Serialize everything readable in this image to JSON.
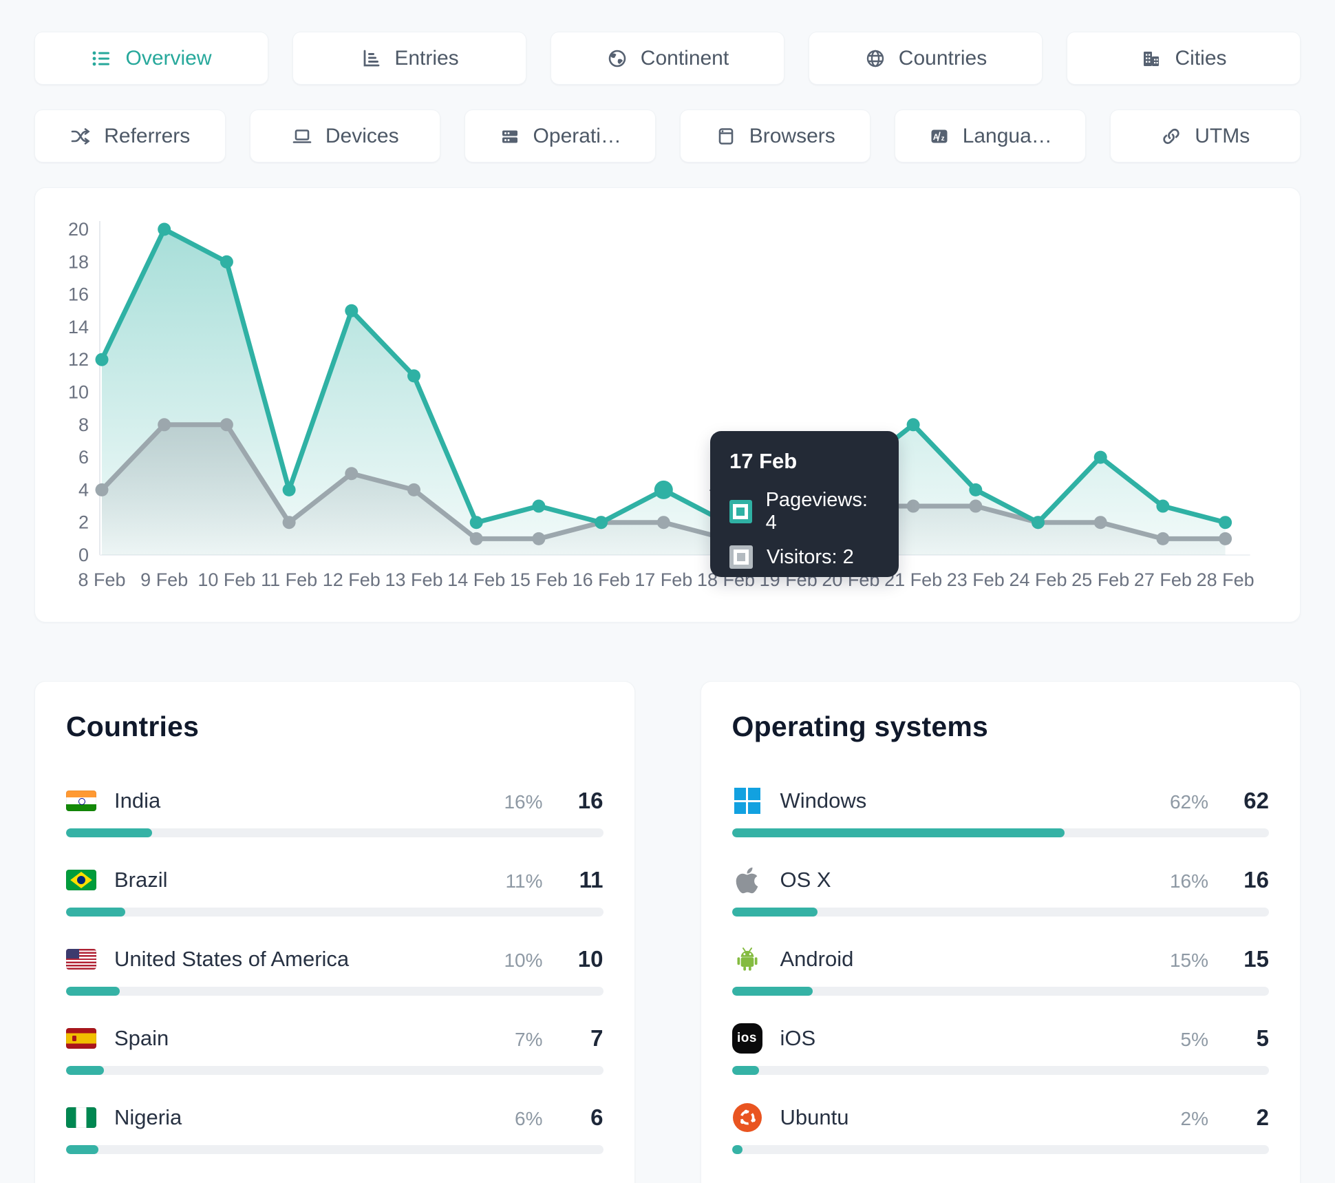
{
  "colors": {
    "accent": "#2fb1a4",
    "secondary_line": "#9ca7ad",
    "tooltip_bg": "#232a36",
    "windows_blue": "#12a1e0",
    "apple_gray": "#8e9399",
    "android_green": "#84bb40",
    "ubuntu_orange": "#E95420"
  },
  "tabs_row1": [
    {
      "label": "Overview",
      "icon": "list-icon",
      "active": true
    },
    {
      "label": "Entries",
      "icon": "bar-chart-icon",
      "active": false
    },
    {
      "label": "Continent",
      "icon": "earth-icon",
      "active": false
    },
    {
      "label": "Countries",
      "icon": "globe-icon",
      "active": false
    },
    {
      "label": "Cities",
      "icon": "buildings-icon",
      "active": false
    }
  ],
  "tabs_row2": [
    {
      "label": "Referrers",
      "icon": "shuffle-icon",
      "active": false
    },
    {
      "label": "Devices",
      "icon": "laptop-icon",
      "active": false
    },
    {
      "label": "Operati…",
      "icon": "server-icon",
      "active": false
    },
    {
      "label": "Browsers",
      "icon": "browser-icon",
      "active": false
    },
    {
      "label": "Langua…",
      "icon": "language-icon",
      "active": false
    },
    {
      "label": "UTMs",
      "icon": "link-icon",
      "active": false
    }
  ],
  "chart_data": {
    "type": "area",
    "x": [
      "8 Feb",
      "9 Feb",
      "10 Feb",
      "11 Feb",
      "12 Feb",
      "13 Feb",
      "14 Feb",
      "15 Feb",
      "16 Feb",
      "17 Feb",
      "18 Feb",
      "19 Feb",
      "20 Feb",
      "21 Feb",
      "23 Feb",
      "24 Feb",
      "25 Feb",
      "27 Feb",
      "28 Feb"
    ],
    "series": [
      {
        "name": "Pageviews",
        "color": "#2fb1a4",
        "values": [
          12,
          20,
          18,
          4,
          15,
          11,
          2,
          3,
          2,
          4,
          2,
          3,
          5,
          8,
          4,
          2,
          6,
          3,
          2
        ]
      },
      {
        "name": "Visitors",
        "color": "#9ca7ad",
        "values": [
          4,
          8,
          8,
          2,
          5,
          4,
          1,
          1,
          2,
          2,
          1,
          2,
          3,
          3,
          3,
          2,
          2,
          1,
          1
        ]
      }
    ],
    "ylim": [
      0,
      20
    ],
    "yticks": [
      0,
      2,
      4,
      6,
      8,
      10,
      12,
      14,
      16,
      18,
      20
    ],
    "highlight_index": 9,
    "legend_position": "tooltip-only",
    "grid": false
  },
  "tooltip": {
    "title": "17 Feb",
    "rows": [
      {
        "text": "Pageviews: 4",
        "swatch_color": "#2fb1a4"
      },
      {
        "text": "Visitors: 2",
        "swatch_color": "#b3bac0"
      }
    ]
  },
  "countries_panel": {
    "title": "Countries",
    "rows": [
      {
        "flag": "india-flag",
        "name": "India",
        "percent": "16%",
        "count": "16",
        "bar_pct": 16
      },
      {
        "flag": "brazil-flag",
        "name": "Brazil",
        "percent": "11%",
        "count": "11",
        "bar_pct": 11
      },
      {
        "flag": "usa-flag",
        "name": "United States of America",
        "percent": "10%",
        "count": "10",
        "bar_pct": 10
      },
      {
        "flag": "spain-flag",
        "name": "Spain",
        "percent": "7%",
        "count": "7",
        "bar_pct": 7
      },
      {
        "flag": "nigeria-flag",
        "name": "Nigeria",
        "percent": "6%",
        "count": "6",
        "bar_pct": 6
      }
    ]
  },
  "os_panel": {
    "title": "Operating systems",
    "rows": [
      {
        "icon": "windows-logo",
        "name": "Windows",
        "percent": "62%",
        "count": "62",
        "bar_pct": 62
      },
      {
        "icon": "apple-logo",
        "name": "OS X",
        "percent": "16%",
        "count": "16",
        "bar_pct": 16
      },
      {
        "icon": "android-logo",
        "name": "Android",
        "percent": "15%",
        "count": "15",
        "bar_pct": 15
      },
      {
        "icon": "ios-logo",
        "name": "iOS",
        "percent": "5%",
        "count": "5",
        "bar_pct": 5
      },
      {
        "icon": "ubuntu-logo",
        "name": "Ubuntu",
        "percent": "2%",
        "count": "2",
        "bar_pct": 2
      }
    ]
  }
}
